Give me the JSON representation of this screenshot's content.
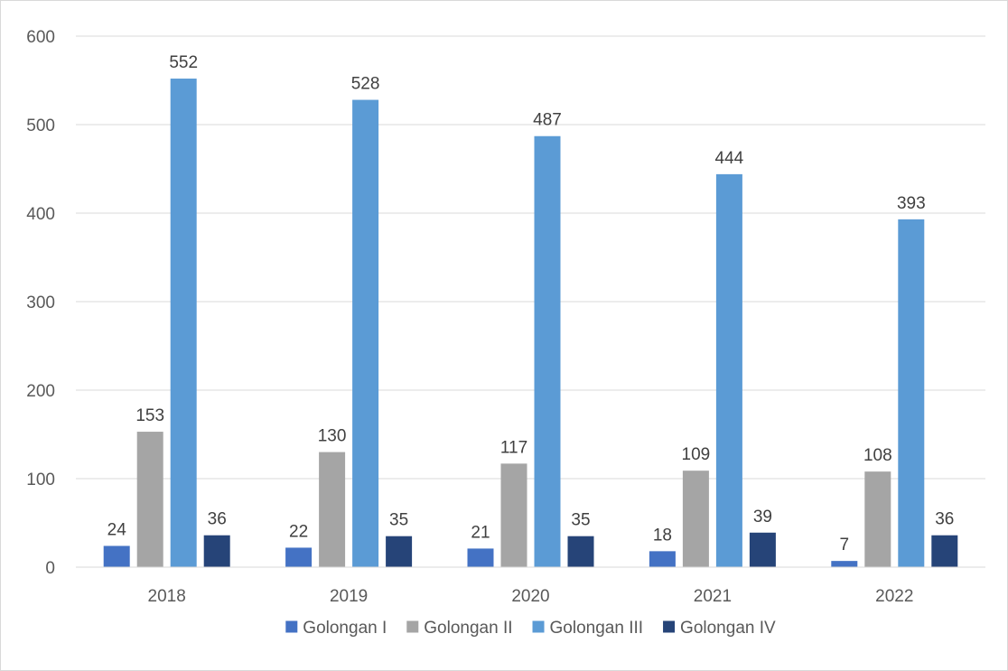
{
  "chart_data": {
    "type": "bar",
    "categories": [
      "2018",
      "2019",
      "2020",
      "2021",
      "2022"
    ],
    "series": [
      {
        "name": "Golongan I",
        "color": "#4472c4",
        "values": [
          24,
          22,
          21,
          18,
          7
        ]
      },
      {
        "name": "Golongan II",
        "color": "#a5a5a5",
        "values": [
          153,
          130,
          117,
          109,
          108
        ]
      },
      {
        "name": "Golongan III",
        "color": "#5b9bd5",
        "values": [
          552,
          528,
          487,
          444,
          393
        ]
      },
      {
        "name": "Golongan IV",
        "color": "#264478",
        "values": [
          36,
          35,
          35,
          39,
          36
        ]
      }
    ],
    "yticks": [
      "0",
      "100",
      "200",
      "300",
      "400",
      "500",
      "600"
    ],
    "ylim": [
      0,
      600
    ],
    "grid": true,
    "data_labels": true,
    "legend_position": "bottom",
    "title": "",
    "xlabel": "",
    "ylabel": ""
  }
}
